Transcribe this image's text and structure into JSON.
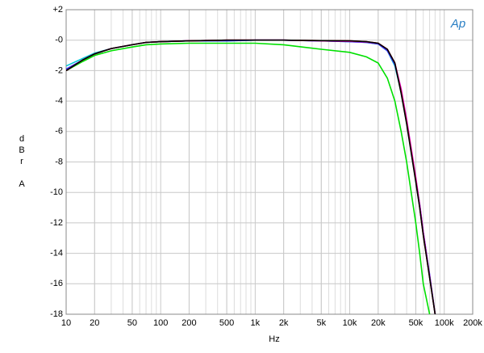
{
  "chart_data": {
    "type": "line",
    "x_label": "Hz",
    "y_label": "dBr A",
    "logo": "Ap",
    "x_scale": "log",
    "grid": true,
    "minor_grid": true,
    "xlim": [
      10,
      200000
    ],
    "xticks": [
      10,
      20,
      50,
      100,
      200,
      500,
      {
        "value": 1000,
        "label": "1k"
      },
      {
        "value": 2000,
        "label": "2k"
      },
      {
        "value": 5000,
        "label": "5k"
      },
      {
        "value": 10000,
        "label": "10k"
      },
      {
        "value": 20000,
        "label": "20k"
      },
      {
        "value": 50000,
        "label": "50k"
      },
      {
        "value": 100000,
        "label": "100k"
      },
      {
        "value": 200000,
        "label": "200k"
      }
    ],
    "ylim": [
      -18,
      2
    ],
    "yticks": [
      {
        "value": 2,
        "label": "+2"
      },
      {
        "value": 0,
        "label": "-0"
      },
      -2,
      -4,
      -6,
      -8,
      -10,
      -12,
      -14,
      -16,
      -18
    ],
    "x": [
      10,
      15,
      20,
      30,
      50,
      70,
      100,
      200,
      500,
      1000,
      2000,
      5000,
      10000,
      15000,
      20000,
      25000,
      30000,
      35000,
      40000,
      50000,
      55000,
      60000,
      70000,
      80000
    ],
    "series": [
      {
        "color": "#00e000",
        "values": [
          -2.0,
          -1.4,
          -1.0,
          -0.7,
          -0.45,
          -0.3,
          -0.25,
          -0.2,
          -0.2,
          -0.2,
          -0.3,
          -0.6,
          -0.8,
          -1.1,
          -1.5,
          -2.5,
          -4.0,
          -6.0,
          -8.0,
          -12.0,
          -14.0,
          -16.0,
          -18.0,
          null
        ]
      },
      {
        "color": "#00c8d8",
        "values": [
          -1.7,
          -1.2,
          -0.85,
          -0.55,
          -0.3,
          -0.15,
          -0.1,
          -0.05,
          -0.05,
          0.0,
          0.0,
          -0.05,
          -0.1,
          -0.15,
          -0.25,
          -0.7,
          -1.7,
          -3.4,
          -5.4,
          -9.2,
          -10.9,
          -12.7,
          -15.5,
          -18.0
        ]
      },
      {
        "color": "#3030ff",
        "values": [
          -1.9,
          -1.3,
          -0.9,
          -0.55,
          -0.3,
          -0.15,
          -0.1,
          -0.05,
          -0.05,
          0.0,
          0.0,
          -0.05,
          -0.1,
          -0.15,
          -0.25,
          -0.7,
          -1.6,
          -3.3,
          -5.3,
          -9.1,
          -10.8,
          -12.6,
          -15.4,
          -18.0
        ]
      },
      {
        "color": "#e000e0",
        "values": [
          -2.0,
          -1.3,
          -0.9,
          -0.55,
          -0.3,
          -0.15,
          -0.1,
          -0.05,
          0.0,
          0.0,
          0.0,
          -0.05,
          -0.08,
          -0.12,
          -0.2,
          -0.6,
          -1.5,
          -3.2,
          -5.2,
          -9.0,
          -10.8,
          -12.6,
          -15.5,
          -18.0
        ]
      },
      {
        "color": "#e00000",
        "values": [
          -2.0,
          -1.3,
          -0.9,
          -0.55,
          -0.3,
          -0.15,
          -0.1,
          -0.05,
          0.0,
          0.0,
          0.0,
          -0.03,
          -0.05,
          -0.1,
          -0.2,
          -0.6,
          -1.5,
          -3.4,
          -5.4,
          -9.2,
          -11.0,
          -12.8,
          -15.6,
          -18.0
        ]
      },
      {
        "color": "#000000",
        "values": [
          -2.0,
          -1.3,
          -0.9,
          -0.55,
          -0.3,
          -0.15,
          -0.1,
          -0.05,
          0.0,
          0.0,
          0.0,
          -0.03,
          -0.05,
          -0.1,
          -0.2,
          -0.6,
          -1.5,
          -3.5,
          -5.5,
          -9.3,
          -11.0,
          -12.8,
          -15.6,
          -18.0
        ]
      }
    ]
  }
}
